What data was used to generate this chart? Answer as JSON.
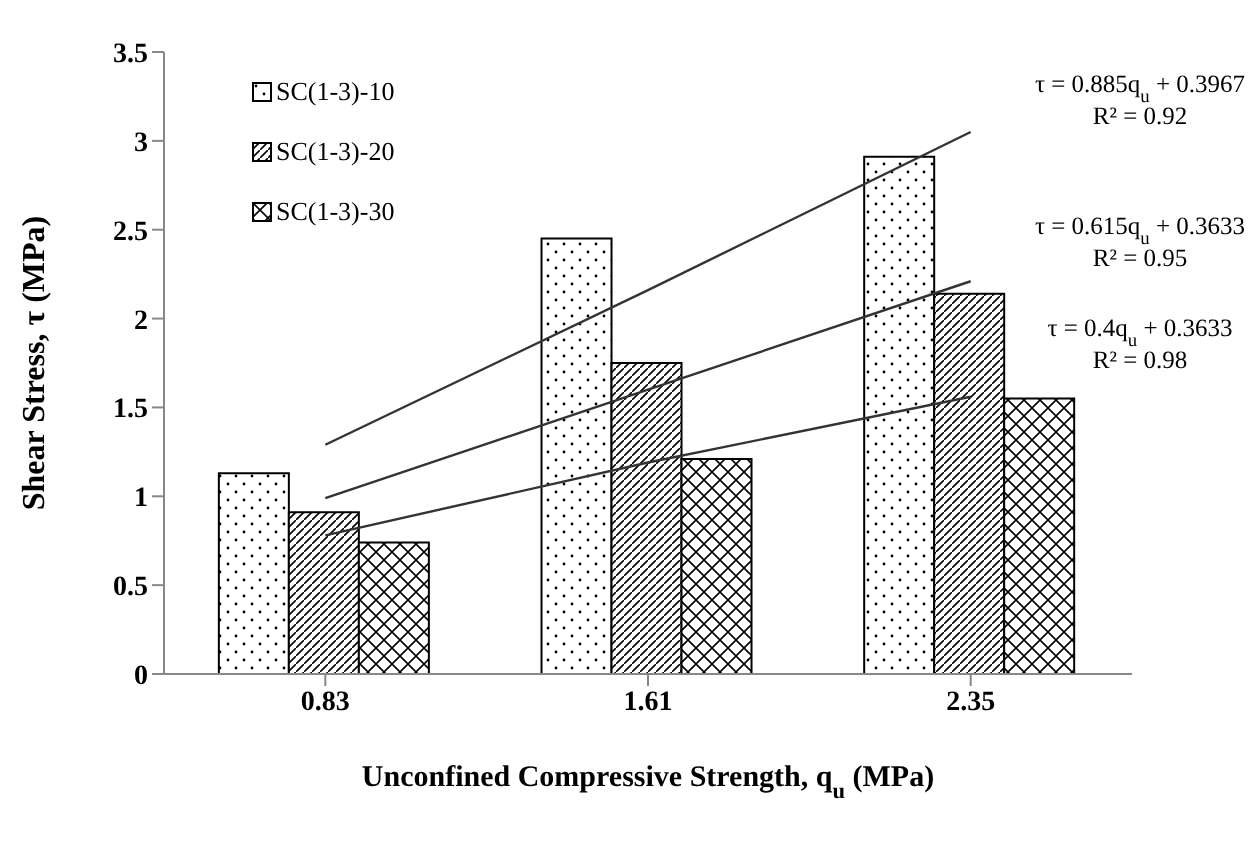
{
  "chart_data": {
    "type": "bar",
    "xlabel": "Unconfined  Compressive Strength, q$_{u}$ (MPa)",
    "ylabel": "Shear Stress, τ (MPa)",
    "categories": [
      "0.83",
      "1.61",
      "2.35"
    ],
    "series": [
      {
        "name": "SC(1-3)-10",
        "color": "#000000",
        "values": [
          1.13,
          2.45,
          2.91
        ]
      },
      {
        "name": "SC(1-3)-20",
        "color": "#000000",
        "values": [
          0.91,
          1.75,
          2.14
        ]
      },
      {
        "name": "SC(1-3)-30",
        "color": "#000000",
        "values": [
          0.74,
          1.21,
          1.55
        ]
      },
      {
        "type": "line",
        "color": "#333333",
        "x": [
          "0.83",
          "1.61",
          "2.35"
        ],
        "values": [
          1.29,
          2.16,
          3.05
        ]
      },
      {
        "type": "line",
        "color": "#333333",
        "x": [
          "0.83",
          "1.61",
          "2.35"
        ],
        "values": [
          0.99,
          1.6,
          2.21
        ]
      },
      {
        "type": "line",
        "color": "#333333",
        "x": [
          "0.83",
          "1.61",
          "2.35"
        ],
        "values": [
          0.78,
          1.19,
          1.56
        ]
      }
    ],
    "ylim": [
      0,
      3.5
    ],
    "yticks": [
      0,
      0.5,
      1,
      1.5,
      2,
      2.5,
      3,
      3.5
    ],
    "grid": false,
    "legend": "top left",
    "marker": "none",
    "line_style": "solid",
    "annotations": [
      "τ = 0.885q$_{u}$ + 0.3967\nR² = 0.92",
      "τ = 0.615q$_{u}$ + 0.3633\nR² = 0.95",
      "τ = 0.4q$_{u}$ + 0.3633\nR² = 0.98"
    ]
  }
}
